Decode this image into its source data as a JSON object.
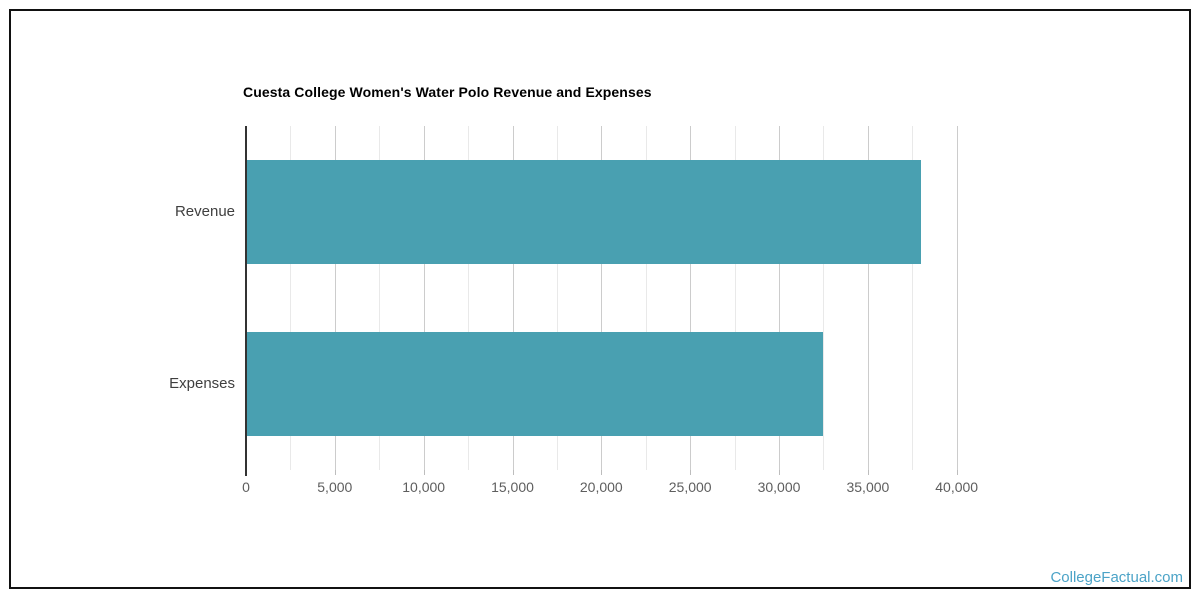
{
  "page": {
    "watermark": "CollegeFactual.com",
    "colors": {
      "bar": "#49A0B1",
      "border": "#111111",
      "axis": "#333333",
      "grid_major": "#cccccc",
      "grid_minor": "#e9e9e9",
      "title": "#000000",
      "category_label": "#3f3f3f",
      "tick_label": "#5e5e5e",
      "watermark": "#4BA3C7"
    }
  },
  "chart_data": {
    "type": "bar",
    "orientation": "horizontal",
    "title": "Cuesta College Women's Water Polo Revenue and Expenses",
    "categories": [
      "Revenue",
      "Expenses"
    ],
    "values": [
      38000,
      32500
    ],
    "xlabel": "",
    "ylabel": "",
    "xlim": [
      0,
      43000
    ],
    "tick_interval": 5000,
    "minor_grid_interval": 2500,
    "tick_max": 40000,
    "tick_labels": [
      "0",
      "5,000",
      "10,000",
      "15,000",
      "20,000",
      "25,000",
      "30,000",
      "35,000",
      "40,000"
    ],
    "grid": true,
    "legend": "none"
  }
}
